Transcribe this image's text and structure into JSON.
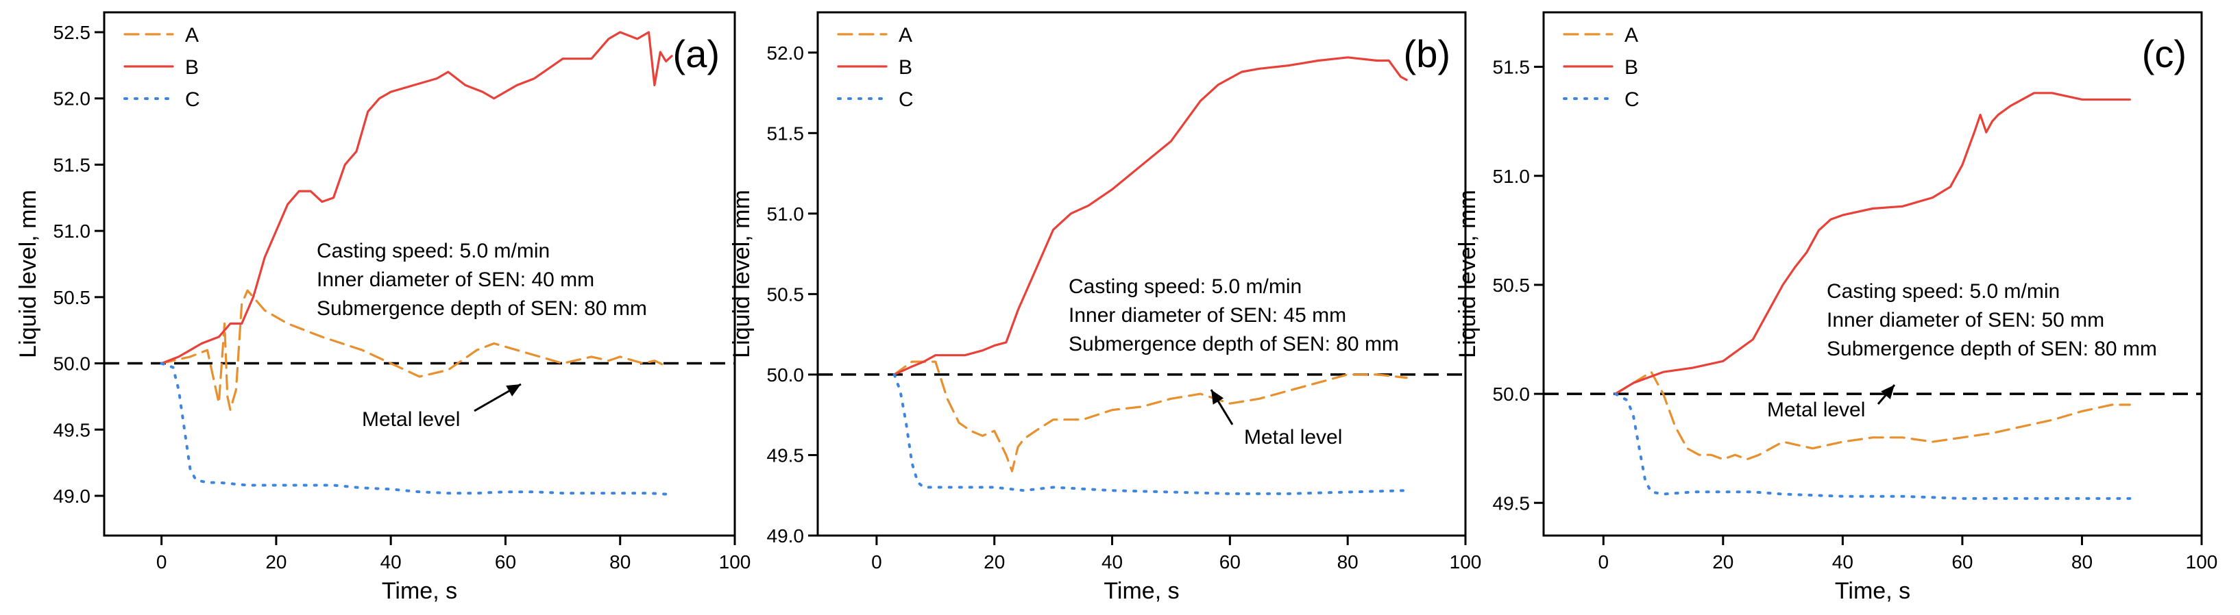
{
  "chart_data": [
    {
      "type": "line",
      "panel_label": "(a)",
      "xlabel": "Time, s",
      "ylabel": "Liquid level, mm",
      "xlim": [
        -10,
        100
      ],
      "ylim": [
        48.7,
        52.65
      ],
      "xticks": [
        0,
        20,
        40,
        60,
        80,
        100
      ],
      "xtick_labels": [
        "0",
        "20",
        "40",
        "60",
        "80",
        "100"
      ],
      "yticks": [
        49.0,
        49.5,
        50.0,
        50.5,
        51.0,
        51.5,
        52.0,
        52.5
      ],
      "ytick_labels": [
        "49.0",
        "49.5",
        "50.0",
        "50.5",
        "51.0",
        "51.5",
        "52.0",
        "52.5"
      ],
      "legend_position": "top-left",
      "annotation_lines": [
        "Casting speed: 5.0 m/min",
        "Inner diameter of SEN: 40 mm",
        "Submergence depth of SEN: 80 mm"
      ],
      "metal_level_label": "Metal level",
      "metal_level_value": 50.0,
      "series": [
        {
          "name": "A",
          "x": [
            0,
            5,
            8,
            10,
            11,
            11.5,
            12,
            13,
            14,
            15,
            16,
            18,
            22,
            28,
            35,
            40,
            45,
            50,
            55,
            58,
            62,
            66,
            70,
            75,
            78,
            80,
            84,
            86,
            88
          ],
          "y": [
            50.0,
            50.05,
            50.1,
            49.7,
            50.3,
            49.75,
            49.65,
            49.8,
            50.45,
            50.55,
            50.5,
            50.4,
            50.3,
            50.2,
            50.1,
            50.0,
            49.9,
            49.95,
            50.1,
            50.15,
            50.1,
            50.05,
            50.0,
            50.05,
            50.02,
            50.05,
            50.0,
            50.02,
            49.98
          ]
        },
        {
          "name": "B",
          "x": [
            0,
            3,
            5,
            7,
            10,
            12,
            14,
            16,
            18,
            20,
            22,
            24,
            26,
            28,
            30,
            32,
            34,
            36,
            38,
            40,
            44,
            48,
            50,
            53,
            56,
            58,
            62,
            65,
            70,
            73,
            75,
            78,
            80,
            83,
            85,
            86,
            87,
            88,
            89
          ],
          "y": [
            50.0,
            50.05,
            50.1,
            50.15,
            50.2,
            50.3,
            50.3,
            50.5,
            50.8,
            51.0,
            51.2,
            51.3,
            51.3,
            51.22,
            51.25,
            51.5,
            51.6,
            51.9,
            52.0,
            52.05,
            52.1,
            52.15,
            52.2,
            52.1,
            52.05,
            52.0,
            52.1,
            52.15,
            52.3,
            52.3,
            52.3,
            52.45,
            52.5,
            52.45,
            52.5,
            52.1,
            52.35,
            52.28,
            52.32
          ]
        },
        {
          "name": "C",
          "x": [
            0,
            2,
            3,
            4,
            5,
            6,
            8,
            10,
            15,
            20,
            25,
            30,
            35,
            40,
            45,
            50,
            55,
            60,
            65,
            70,
            75,
            80,
            85,
            89
          ],
          "y": [
            50.0,
            49.97,
            49.8,
            49.5,
            49.2,
            49.12,
            49.1,
            49.1,
            49.08,
            49.08,
            49.08,
            49.08,
            49.06,
            49.05,
            49.03,
            49.02,
            49.02,
            49.03,
            49.03,
            49.02,
            49.02,
            49.02,
            49.02,
            49.01
          ]
        }
      ]
    },
    {
      "type": "line",
      "panel_label": "(b)",
      "xlabel": "Time, s",
      "ylabel": "Liquid level, mm",
      "xlim": [
        -10,
        100
      ],
      "ylim": [
        49.0,
        52.25
      ],
      "xticks": [
        0,
        20,
        40,
        60,
        80,
        100
      ],
      "xtick_labels": [
        "0",
        "20",
        "40",
        "60",
        "80",
        "100"
      ],
      "yticks": [
        49.0,
        49.5,
        50.0,
        50.5,
        51.0,
        51.5,
        52.0
      ],
      "ytick_labels": [
        "49.0",
        "49.5",
        "50.0",
        "50.5",
        "51.0",
        "51.5",
        "52.0"
      ],
      "legend_position": "top-left",
      "annotation_lines": [
        "Casting speed: 5.0 m/min",
        "Inner diameter of SEN: 45 mm",
        "Submergence depth of SEN: 80 mm"
      ],
      "metal_level_label": "Metal level",
      "metal_level_value": 50.0,
      "series": [
        {
          "name": "A",
          "x": [
            3,
            6,
            10,
            12,
            14,
            16,
            18,
            20,
            22,
            23,
            24,
            25,
            27,
            30,
            35,
            40,
            45,
            50,
            55,
            60,
            65,
            70,
            75,
            80,
            85,
            90
          ],
          "y": [
            50.0,
            50.08,
            50.08,
            49.85,
            49.7,
            49.65,
            49.62,
            49.65,
            49.5,
            49.4,
            49.55,
            49.6,
            49.65,
            49.72,
            49.72,
            49.78,
            49.8,
            49.85,
            49.88,
            49.82,
            49.85,
            49.9,
            49.95,
            50.0,
            50.0,
            49.98
          ]
        },
        {
          "name": "B",
          "x": [
            3,
            6,
            8,
            10,
            15,
            18,
            20,
            22,
            24,
            27,
            30,
            33,
            36,
            40,
            45,
            50,
            55,
            58,
            62,
            65,
            70,
            75,
            80,
            85,
            87,
            88,
            89,
            90
          ],
          "y": [
            50.0,
            50.05,
            50.08,
            50.12,
            50.12,
            50.15,
            50.18,
            50.2,
            50.4,
            50.65,
            50.9,
            51.0,
            51.05,
            51.15,
            51.3,
            51.45,
            51.7,
            51.8,
            51.88,
            51.9,
            51.92,
            51.95,
            51.97,
            51.95,
            51.95,
            51.9,
            51.85,
            51.83
          ]
        },
        {
          "name": "C",
          "x": [
            3,
            4,
            5,
            6,
            7,
            8,
            10,
            15,
            20,
            25,
            30,
            40,
            50,
            60,
            70,
            80,
            90
          ],
          "y": [
            50.0,
            49.9,
            49.7,
            49.45,
            49.33,
            49.3,
            49.3,
            49.3,
            49.3,
            49.28,
            49.3,
            49.28,
            49.27,
            49.26,
            49.26,
            49.27,
            49.28
          ]
        }
      ]
    },
    {
      "type": "line",
      "panel_label": "(c)",
      "xlabel": "Time, s",
      "ylabel": "Liquid level, mm",
      "xlim": [
        -10,
        100
      ],
      "ylim": [
        49.35,
        51.75
      ],
      "xticks": [
        0,
        20,
        40,
        60,
        80,
        100
      ],
      "xtick_labels": [
        "0",
        "20",
        "40",
        "60",
        "80",
        "100"
      ],
      "yticks": [
        49.5,
        50.0,
        50.5,
        51.0,
        51.5
      ],
      "ytick_labels": [
        "49.5",
        "50.0",
        "50.5",
        "51.0",
        "51.5"
      ],
      "legend_position": "top-left",
      "annotation_lines": [
        "Casting speed: 5.0 m/min",
        "Inner diameter of SEN: 50 mm",
        "Submergence depth of SEN: 80 mm"
      ],
      "metal_level_label": "Metal level",
      "metal_level_value": 50.0,
      "series": [
        {
          "name": "A",
          "x": [
            2,
            5,
            8,
            10,
            12,
            14,
            16,
            18,
            20,
            22,
            24,
            26,
            28,
            30,
            35,
            40,
            45,
            50,
            55,
            60,
            65,
            70,
            75,
            80,
            85,
            88
          ],
          "y": [
            50.0,
            50.05,
            50.1,
            50.0,
            49.85,
            49.75,
            49.72,
            49.72,
            49.7,
            49.72,
            49.7,
            49.72,
            49.75,
            49.78,
            49.75,
            49.78,
            49.8,
            49.8,
            49.78,
            49.8,
            49.82,
            49.85,
            49.88,
            49.92,
            49.95,
            49.95
          ]
        },
        {
          "name": "B",
          "x": [
            2,
            5,
            8,
            10,
            15,
            20,
            25,
            28,
            30,
            32,
            34,
            36,
            38,
            40,
            45,
            50,
            55,
            58,
            60,
            62,
            63,
            64,
            65,
            66,
            68,
            70,
            72,
            75,
            80,
            85,
            88
          ],
          "y": [
            50.0,
            50.05,
            50.08,
            50.1,
            50.12,
            50.15,
            50.25,
            50.4,
            50.5,
            50.58,
            50.65,
            50.75,
            50.8,
            50.82,
            50.85,
            50.86,
            50.9,
            50.95,
            51.05,
            51.2,
            51.28,
            51.2,
            51.25,
            51.28,
            51.32,
            51.35,
            51.38,
            51.38,
            51.35,
            51.35,
            51.35
          ]
        },
        {
          "name": "C",
          "x": [
            2,
            4,
            5,
            6,
            7,
            8,
            10,
            15,
            20,
            25,
            30,
            40,
            50,
            60,
            70,
            80,
            88
          ],
          "y": [
            50.0,
            49.97,
            49.9,
            49.75,
            49.6,
            49.55,
            49.54,
            49.55,
            49.55,
            49.55,
            49.54,
            49.53,
            49.53,
            49.52,
            49.52,
            49.52,
            49.52
          ]
        }
      ]
    }
  ],
  "colors": {
    "A": "#E8902E",
    "B": "#E8413A",
    "C": "#3D85E0",
    "axes": "#000000"
  }
}
